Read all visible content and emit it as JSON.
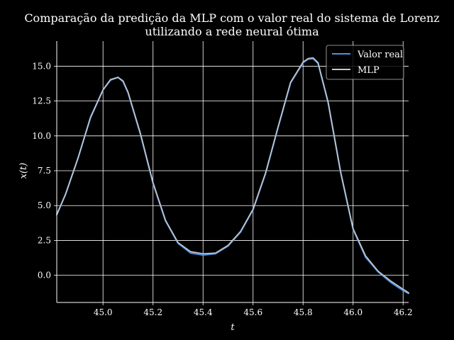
{
  "chart_data": {
    "type": "line",
    "title": [
      "Comparação da predição da MLP com o valor real do sistema de Lorenz",
      "utilizando a rede neural ótima"
    ],
    "xlabel": "t",
    "ylabel": "x(t)",
    "xlim": [
      44.815,
      46.222
    ],
    "ylim": [
      -1.95,
      16.8
    ],
    "grid": true,
    "legend_position": "top-right",
    "xticks": [
      45.0,
      45.2,
      45.4,
      45.6,
      45.8,
      46.0,
      46.2
    ],
    "xtick_labels": [
      "45.0",
      "45.2",
      "45.4",
      "45.6",
      "45.8",
      "46.0",
      "46.2"
    ],
    "yticks": [
      0.0,
      2.5,
      5.0,
      7.5,
      10.0,
      12.5,
      15.0
    ],
    "ytick_labels": [
      "0.0",
      "2.5",
      "5.0",
      "7.5",
      "10.0",
      "12.5",
      "15.0"
    ],
    "colors": {
      "background": "#000000",
      "grid": "#ffffff",
      "axes": "#ffffff"
    },
    "series": [
      {
        "name": "Valor real",
        "color": "#4a90e2",
        "x": [
          44.815,
          44.85,
          44.9,
          44.95,
          45.0,
          45.03,
          45.06,
          45.08,
          45.1,
          45.15,
          45.2,
          45.25,
          45.3,
          45.35,
          45.4,
          45.45,
          45.5,
          45.55,
          45.6,
          45.65,
          45.7,
          45.75,
          45.8,
          45.82,
          45.84,
          45.86,
          45.9,
          45.95,
          46.0,
          46.05,
          46.1,
          46.15,
          46.2,
          46.222
        ],
        "y": [
          4.35,
          5.8,
          8.4,
          11.3,
          13.3,
          14.0,
          14.2,
          13.9,
          13.1,
          10.1,
          6.6,
          3.9,
          2.3,
          1.6,
          1.45,
          1.55,
          2.1,
          3.1,
          4.7,
          7.3,
          10.6,
          13.8,
          15.25,
          15.5,
          15.55,
          15.2,
          12.4,
          7.4,
          3.3,
          1.3,
          0.25,
          -0.5,
          -1.1,
          -1.3
        ]
      },
      {
        "name": "MLP",
        "color": "#c8c8c8",
        "x": [
          44.815,
          44.85,
          44.9,
          44.95,
          45.0,
          45.03,
          45.06,
          45.08,
          45.1,
          45.15,
          45.2,
          45.25,
          45.3,
          45.35,
          45.4,
          45.45,
          45.5,
          45.55,
          45.6,
          45.65,
          45.7,
          45.75,
          45.8,
          45.82,
          45.84,
          45.86,
          45.9,
          45.95,
          46.0,
          46.05,
          46.1,
          46.15,
          46.2,
          46.222
        ],
        "y": [
          4.35,
          5.8,
          8.4,
          11.35,
          13.3,
          14.05,
          14.2,
          13.95,
          13.15,
          10.15,
          6.65,
          3.95,
          2.35,
          1.7,
          1.55,
          1.6,
          2.15,
          3.15,
          4.75,
          7.35,
          10.65,
          13.85,
          15.3,
          15.55,
          15.6,
          15.25,
          12.45,
          7.45,
          3.35,
          1.4,
          0.3,
          -0.4,
          -1.0,
          -1.25
        ]
      }
    ]
  }
}
